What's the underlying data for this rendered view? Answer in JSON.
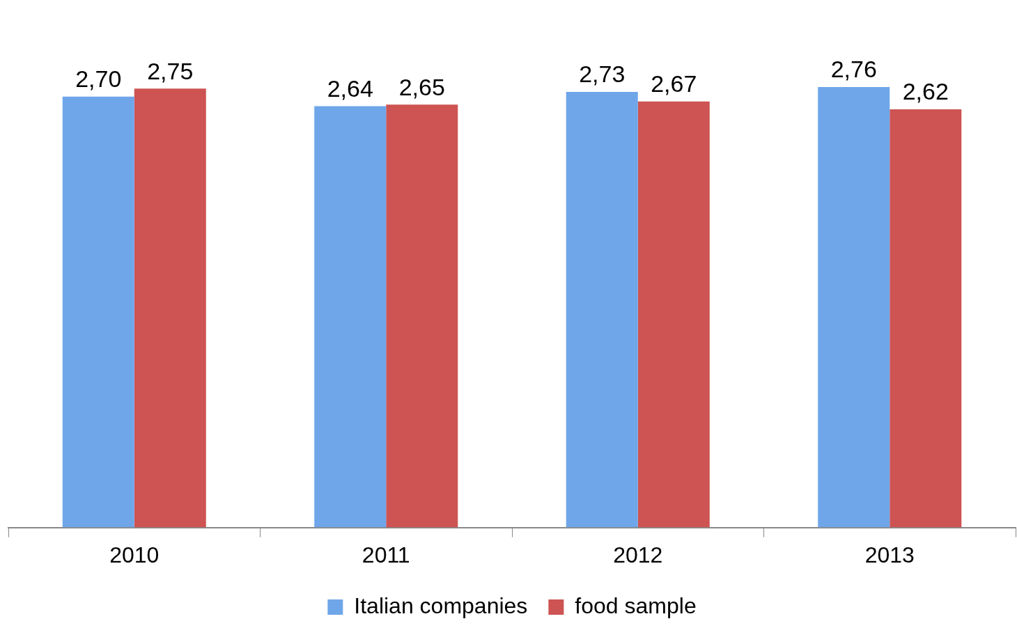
{
  "chart_data": {
    "type": "bar",
    "categories": [
      "2010",
      "2011",
      "2012",
      "2013"
    ],
    "series": [
      {
        "name": "Italian companies",
        "color": "#6fa6ea",
        "values": [
          2.7,
          2.64,
          2.73,
          2.76
        ],
        "value_labels": [
          "2,70",
          "2,64",
          "2,73",
          "2,76"
        ]
      },
      {
        "name": "food sample",
        "color": "#cd5452",
        "values": [
          2.75,
          2.65,
          2.67,
          2.62
        ],
        "value_labels": [
          "2,75",
          "2,65",
          "2,67",
          "2,62"
        ]
      }
    ],
    "legend": "bottom",
    "grid": false,
    "tick_labels": "x"
  }
}
